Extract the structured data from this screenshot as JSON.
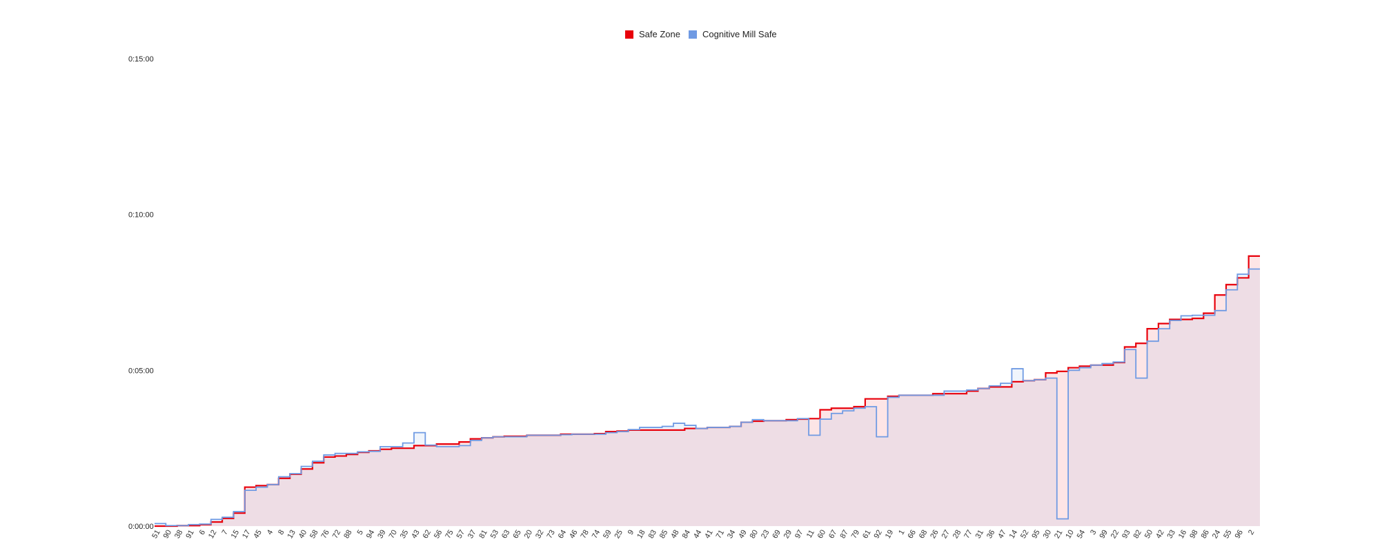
{
  "chart_data": {
    "type": "area",
    "step": true,
    "title": "",
    "xlabel": "",
    "ylabel": "",
    "legend_position": "top-center",
    "grid": false,
    "y_unit": "seconds",
    "ylim": [
      0,
      900
    ],
    "y_ticks": [
      {
        "value": 0,
        "label": "0:00:00"
      },
      {
        "value": 300,
        "label": "0:05:00"
      },
      {
        "value": 600,
        "label": "0:10:00"
      },
      {
        "value": 900,
        "label": "0:15:00"
      }
    ],
    "categories": [
      "51",
      "90",
      "38",
      "91",
      "6",
      "12",
      "7",
      "15",
      "17",
      "45",
      "4",
      "8",
      "13",
      "40",
      "58",
      "76",
      "72",
      "88",
      "5",
      "94",
      "39",
      "70",
      "35",
      "43",
      "62",
      "56",
      "75",
      "57",
      "37",
      "81",
      "53",
      "63",
      "65",
      "20",
      "32",
      "73",
      "64",
      "46",
      "78",
      "74",
      "59",
      "25",
      "9",
      "18",
      "83",
      "85",
      "48",
      "84",
      "44",
      "41",
      "71",
      "34",
      "49",
      "80",
      "23",
      "69",
      "29",
      "97",
      "11",
      "60",
      "67",
      "87",
      "79",
      "61",
      "92",
      "19",
      "1",
      "66",
      "68",
      "26",
      "27",
      "28",
      "77",
      "31",
      "36",
      "47",
      "14",
      "52",
      "95",
      "30",
      "21",
      "10",
      "54",
      "3",
      "99",
      "22",
      "93",
      "82",
      "50",
      "42",
      "33",
      "16",
      "98",
      "86",
      "24",
      "55",
      "96",
      "2"
    ],
    "series": [
      {
        "name": "Safe Zone",
        "color": "#e8000b",
        "values": [
          0,
          0,
          1,
          1,
          3,
          8,
          15,
          25,
          75,
          78,
          80,
          92,
          100,
          110,
          122,
          133,
          135,
          138,
          142,
          145,
          148,
          150,
          150,
          155,
          155,
          158,
          158,
          162,
          168,
          170,
          172,
          173,
          173,
          175,
          175,
          175,
          177,
          177,
          177,
          178,
          182,
          183,
          185,
          185,
          185,
          185,
          185,
          188,
          188,
          190,
          190,
          192,
          200,
          202,
          203,
          203,
          205,
          206,
          207,
          224,
          227,
          227,
          230,
          245,
          245,
          250,
          252,
          252,
          252,
          255,
          255,
          255,
          260,
          265,
          268,
          268,
          278,
          280,
          282,
          295,
          298,
          305,
          308,
          310,
          310,
          315,
          345,
          352,
          380,
          390,
          398,
          398,
          400,
          410,
          445,
          465,
          478,
          520
        ]
      },
      {
        "name": "Cognitive Mill Safe",
        "color": "#6f9ae3",
        "values": [
          5,
          1,
          1,
          3,
          4,
          13,
          17,
          28,
          69,
          75,
          80,
          95,
          101,
          115,
          125,
          137,
          140,
          140,
          143,
          144,
          153,
          153,
          160,
          180,
          156,
          153,
          153,
          155,
          165,
          170,
          172,
          172,
          172,
          175,
          175,
          175,
          176,
          177,
          177,
          177,
          180,
          182,
          186,
          190,
          190,
          192,
          198,
          194,
          188,
          190,
          190,
          192,
          200,
          205,
          203,
          203,
          203,
          207,
          175,
          206,
          217,
          222,
          227,
          230,
          172,
          248,
          252,
          252,
          252,
          252,
          260,
          260,
          262,
          265,
          270,
          275,
          303,
          280,
          282,
          285,
          14,
          300,
          305,
          310,
          313,
          316,
          340,
          285,
          356,
          380,
          396,
          405,
          406,
          406,
          415,
          455,
          485,
          495
        ]
      }
    ]
  }
}
